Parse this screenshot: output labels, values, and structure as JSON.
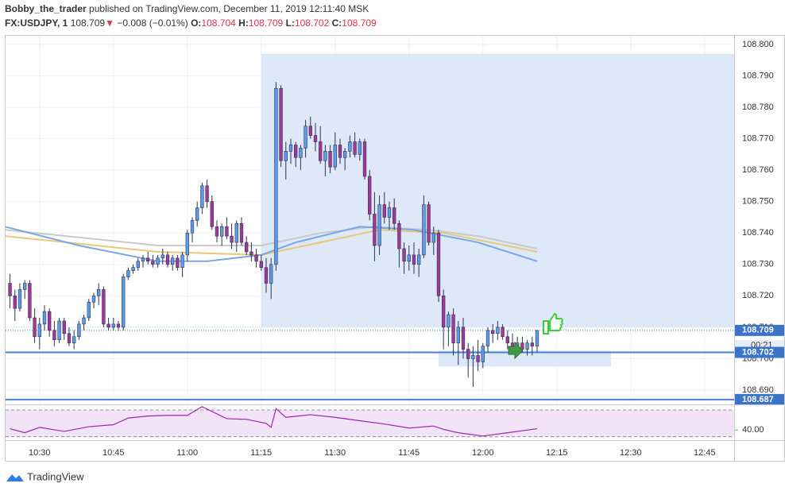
{
  "header": {
    "author": "Bobby_the_trader",
    "published": "published on TradingView.com, December 11, 2019 12:11:40 MSK",
    "symbol": "FX:USDJPY, 1",
    "last": 108.709,
    "arrow": "▼",
    "change": "−0.008 (−0.01%)",
    "ohlc": [
      {
        "label": "O:",
        "value": 108.704
      },
      {
        "label": "H:",
        "value": 108.709
      },
      {
        "label": "L:",
        "value": 108.702
      },
      {
        "label": "C:",
        "value": 108.709
      }
    ]
  },
  "chart_data": [
    {
      "type": "candlestick",
      "up_color": "#5d9cec",
      "down_color": "#a4379c",
      "x": [
        624,
        625,
        626,
        627,
        628,
        629,
        630,
        631,
        632,
        633,
        634,
        635,
        636,
        637,
        638,
        639,
        640,
        641,
        642,
        643,
        644,
        645,
        646,
        647,
        648,
        649,
        650,
        651,
        652,
        653,
        654,
        655,
        656,
        657,
        658,
        659,
        660,
        661,
        662,
        663,
        664,
        665,
        666,
        667,
        668,
        669,
        670,
        671,
        672,
        673,
        674,
        675,
        676,
        677,
        678,
        679,
        680,
        681,
        682,
        683,
        684,
        685,
        686,
        687,
        688,
        689,
        690,
        691,
        692,
        693,
        694,
        695,
        696,
        697,
        698,
        699,
        700,
        701,
        702,
        703,
        704,
        705,
        706,
        707,
        708,
        709,
        710,
        711,
        712,
        713,
        714,
        715,
        716,
        717,
        718,
        719,
        720,
        721,
        722,
        723,
        724,
        725,
        726,
        727,
        728,
        729,
        730,
        731
      ],
      "open": [
        108.724,
        108.72,
        108.716,
        108.722,
        108.724,
        108.713,
        108.707,
        108.711,
        108.715,
        108.709,
        108.706,
        108.712,
        108.708,
        108.705,
        108.707,
        108.711,
        108.713,
        108.718,
        108.72,
        108.722,
        108.711,
        108.71,
        108.711,
        108.71,
        108.726,
        108.728,
        108.729,
        108.731,
        108.732,
        108.731,
        108.73,
        108.732,
        108.733,
        108.73,
        108.732,
        108.729,
        108.733,
        108.74,
        108.744,
        108.748,
        108.755,
        108.75,
        108.742,
        108.739,
        108.742,
        108.739,
        108.737,
        108.743,
        108.737,
        108.734,
        108.733,
        108.731,
        108.729,
        108.724,
        108.73,
        108.786,
        108.763,
        108.766,
        108.768,
        108.764,
        108.767,
        108.774,
        108.771,
        108.769,
        108.763,
        108.766,
        108.761,
        108.768,
        108.764,
        108.766,
        108.769,
        108.765,
        108.769,
        108.758,
        108.746,
        108.736,
        108.749,
        108.745,
        108.748,
        108.743,
        108.735,
        108.731,
        108.733,
        108.73,
        108.733,
        108.749,
        108.737,
        108.74,
        108.72,
        108.71,
        108.714,
        108.705,
        108.71,
        108.703,
        108.7,
        108.701,
        108.699,
        108.704,
        108.709,
        108.708,
        108.71,
        108.707,
        108.705,
        108.704,
        108.705,
        108.703,
        108.705,
        108.704
      ],
      "high": [
        108.727,
        108.722,
        108.724,
        108.725,
        108.725,
        108.716,
        108.713,
        108.717,
        108.716,
        108.712,
        108.713,
        108.713,
        108.71,
        108.709,
        108.712,
        108.714,
        108.719,
        108.721,
        108.724,
        108.723,
        108.713,
        108.713,
        108.712,
        108.727,
        108.729,
        108.73,
        108.732,
        108.733,
        108.734,
        108.733,
        108.733,
        108.735,
        108.734,
        108.733,
        108.733,
        108.734,
        108.741,
        108.745,
        108.75,
        108.756,
        108.757,
        108.752,
        108.744,
        108.743,
        108.745,
        108.743,
        108.744,
        108.745,
        108.739,
        108.737,
        108.735,
        108.733,
        108.732,
        108.732,
        108.788,
        108.787,
        108.769,
        108.77,
        108.769,
        108.768,
        108.776,
        108.777,
        108.775,
        108.774,
        108.768,
        108.768,
        108.772,
        108.77,
        108.767,
        108.771,
        108.772,
        108.77,
        108.77,
        108.76,
        108.753,
        108.752,
        108.753,
        108.75,
        108.751,
        108.744,
        108.737,
        108.736,
        108.737,
        108.735,
        108.752,
        108.75,
        108.742,
        108.741,
        108.722,
        108.715,
        108.716,
        108.712,
        108.713,
        108.705,
        108.704,
        108.706,
        108.705,
        108.71,
        108.711,
        108.712,
        108.711,
        108.709,
        108.708,
        108.707,
        108.707,
        108.706,
        108.707,
        108.709
      ],
      "low": [
        108.716,
        108.712,
        108.715,
        108.719,
        108.712,
        108.705,
        108.703,
        108.709,
        108.707,
        108.704,
        108.705,
        108.706,
        108.704,
        108.703,
        108.706,
        108.709,
        108.712,
        108.716,
        108.717,
        108.71,
        108.709,
        108.709,
        108.709,
        108.709,
        108.725,
        108.727,
        108.728,
        108.729,
        108.73,
        108.729,
        108.729,
        108.73,
        108.729,
        108.728,
        108.728,
        108.726,
        108.731,
        108.737,
        108.742,
        108.746,
        108.748,
        108.741,
        108.737,
        108.736,
        108.738,
        108.735,
        108.734,
        108.736,
        108.733,
        108.731,
        108.729,
        108.728,
        108.721,
        108.719,
        108.728,
        108.761,
        108.757,
        108.762,
        108.761,
        108.76,
        108.764,
        108.77,
        108.766,
        108.762,
        108.758,
        108.759,
        108.76,
        108.762,
        108.76,
        108.764,
        108.764,
        108.763,
        108.757,
        108.744,
        108.731,
        108.733,
        108.743,
        108.741,
        108.741,
        108.729,
        108.727,
        108.728,
        108.727,
        108.726,
        108.732,
        108.736,
        108.733,
        108.718,
        108.703,
        108.704,
        108.701,
        108.698,
        108.7,
        108.694,
        108.691,
        108.696,
        108.697,
        108.702,
        108.705,
        108.706,
        108.706,
        108.703,
        108.703,
        108.701,
        108.702,
        108.701,
        108.701,
        108.702
      ],
      "close": [
        108.72,
        108.716,
        108.722,
        108.724,
        108.713,
        108.707,
        108.711,
        108.715,
        108.709,
        108.706,
        108.712,
        108.708,
        108.705,
        108.707,
        108.711,
        108.713,
        108.718,
        108.72,
        108.722,
        108.711,
        108.71,
        108.711,
        108.71,
        108.726,
        108.728,
        108.729,
        108.731,
        108.732,
        108.731,
        108.73,
        108.732,
        108.733,
        108.73,
        108.732,
        108.729,
        108.733,
        108.74,
        108.744,
        108.748,
        108.755,
        108.75,
        108.742,
        108.739,
        108.742,
        108.739,
        108.737,
        108.743,
        108.737,
        108.734,
        108.733,
        108.731,
        108.729,
        108.724,
        108.73,
        108.786,
        108.763,
        108.766,
        108.768,
        108.764,
        108.767,
        108.774,
        108.771,
        108.769,
        108.763,
        108.766,
        108.761,
        108.768,
        108.764,
        108.766,
        108.769,
        108.765,
        108.769,
        108.758,
        108.746,
        108.736,
        108.749,
        108.745,
        108.748,
        108.743,
        108.735,
        108.731,
        108.733,
        108.73,
        108.733,
        108.749,
        108.737,
        108.74,
        108.72,
        108.71,
        108.714,
        108.705,
        108.71,
        108.703,
        108.7,
        108.701,
        108.699,
        108.704,
        108.709,
        108.708,
        108.71,
        108.707,
        108.705,
        108.704,
        108.705,
        108.703,
        108.705,
        108.704,
        108.709
      ],
      "overlays": [
        {
          "color": "#c9c9c9",
          "x": [
            623,
            654,
            675,
            687,
            698,
            709,
            719,
            731
          ],
          "values": [
            108.741,
            108.736,
            108.736,
            108.74,
            108.742,
            108.741,
            108.739,
            108.735
          ]
        },
        {
          "color": "#e8c97a",
          "x": [
            623,
            654,
            675,
            690,
            699,
            712,
            731
          ],
          "values": [
            108.739,
            108.734,
            108.733,
            108.738,
            108.741,
            108.74,
            108.734
          ]
        },
        {
          "color": "#7aa6e6",
          "x": [
            623,
            638,
            654,
            664,
            675,
            682,
            695,
            706,
            719,
            731
          ],
          "values": [
            108.742,
            108.736,
            108.731,
            108.731,
            108.733,
            108.737,
            108.742,
            108.741,
            108.737,
            108.731
          ]
        }
      ],
      "zones": [
        {
          "color": "#dbe6f8",
          "x": [
            675,
            771
          ],
          "y": [
            108.797,
            108.71
          ]
        },
        {
          "color": "#dbe6f8",
          "x": [
            711,
            746
          ],
          "y": [
            108.7026,
            108.6975
          ]
        }
      ],
      "hlines": [
        {
          "value": 108.702,
          "color": "#4a7fd4"
        },
        {
          "value": 108.687,
          "color": "#4a7fd4"
        }
      ],
      "price_labels": [
        108.709,
        108.702,
        108.687
      ],
      "countdown": "00:21",
      "label_color": "#3a74c8",
      "xlim": [
        623.1,
        771
      ],
      "ylim": [
        108.6857,
        108.803
      ],
      "xticks": [
        {
          "value": 630,
          "label": "10:30"
        },
        {
          "value": 645,
          "label": "10:45"
        },
        {
          "value": 660,
          "label": "11:00"
        },
        {
          "value": 675,
          "label": "11:15"
        },
        {
          "value": 690,
          "label": "11:30"
        },
        {
          "value": 705,
          "label": "11:45"
        },
        {
          "value": 720,
          "label": "12:00"
        },
        {
          "value": 735,
          "label": "12:15"
        },
        {
          "value": 750,
          "label": "12:30"
        },
        {
          "value": 765,
          "label": "12:45"
        }
      ],
      "yticks": [
        {
          "value": 108.69,
          "label": "108.690"
        },
        {
          "value": 108.7,
          "label": "108.700"
        },
        {
          "value": 108.71,
          "label": "108.710"
        },
        {
          "value": 108.72,
          "label": "108.720"
        },
        {
          "value": 108.73,
          "label": "108.730"
        },
        {
          "value": 108.74,
          "label": "108.740"
        },
        {
          "value": 108.75,
          "label": "108.750"
        },
        {
          "value": 108.76,
          "label": "108.760"
        },
        {
          "value": 108.77,
          "label": "108.770"
        },
        {
          "value": 108.78,
          "label": "108.780"
        },
        {
          "value": 108.79,
          "label": "108.790"
        },
        {
          "value": 108.8,
          "label": "108.800"
        }
      ],
      "grid": true
    },
    {
      "type": "line",
      "color": "#9c27b0",
      "band_color": "#f3e3f6",
      "x": [
        624,
        627,
        630,
        635,
        640,
        645,
        648,
        652,
        656,
        660,
        663,
        668,
        672,
        676,
        677,
        678,
        680,
        685,
        690,
        695,
        700,
        705,
        710,
        712,
        715,
        720,
        725,
        731
      ],
      "values": [
        42,
        36,
        44,
        38,
        45,
        48,
        58,
        61,
        62,
        62,
        75,
        57,
        56,
        50,
        44,
        72,
        59,
        63,
        59,
        54,
        49,
        43,
        46,
        41,
        36,
        31,
        36,
        42
      ],
      "levels": [
        70,
        30
      ],
      "ylim": [
        26,
        76
      ],
      "yticks": [
        {
          "value": 40,
          "label": "40.00"
        }
      ]
    }
  ],
  "footer": {
    "brand": "TradingView"
  }
}
